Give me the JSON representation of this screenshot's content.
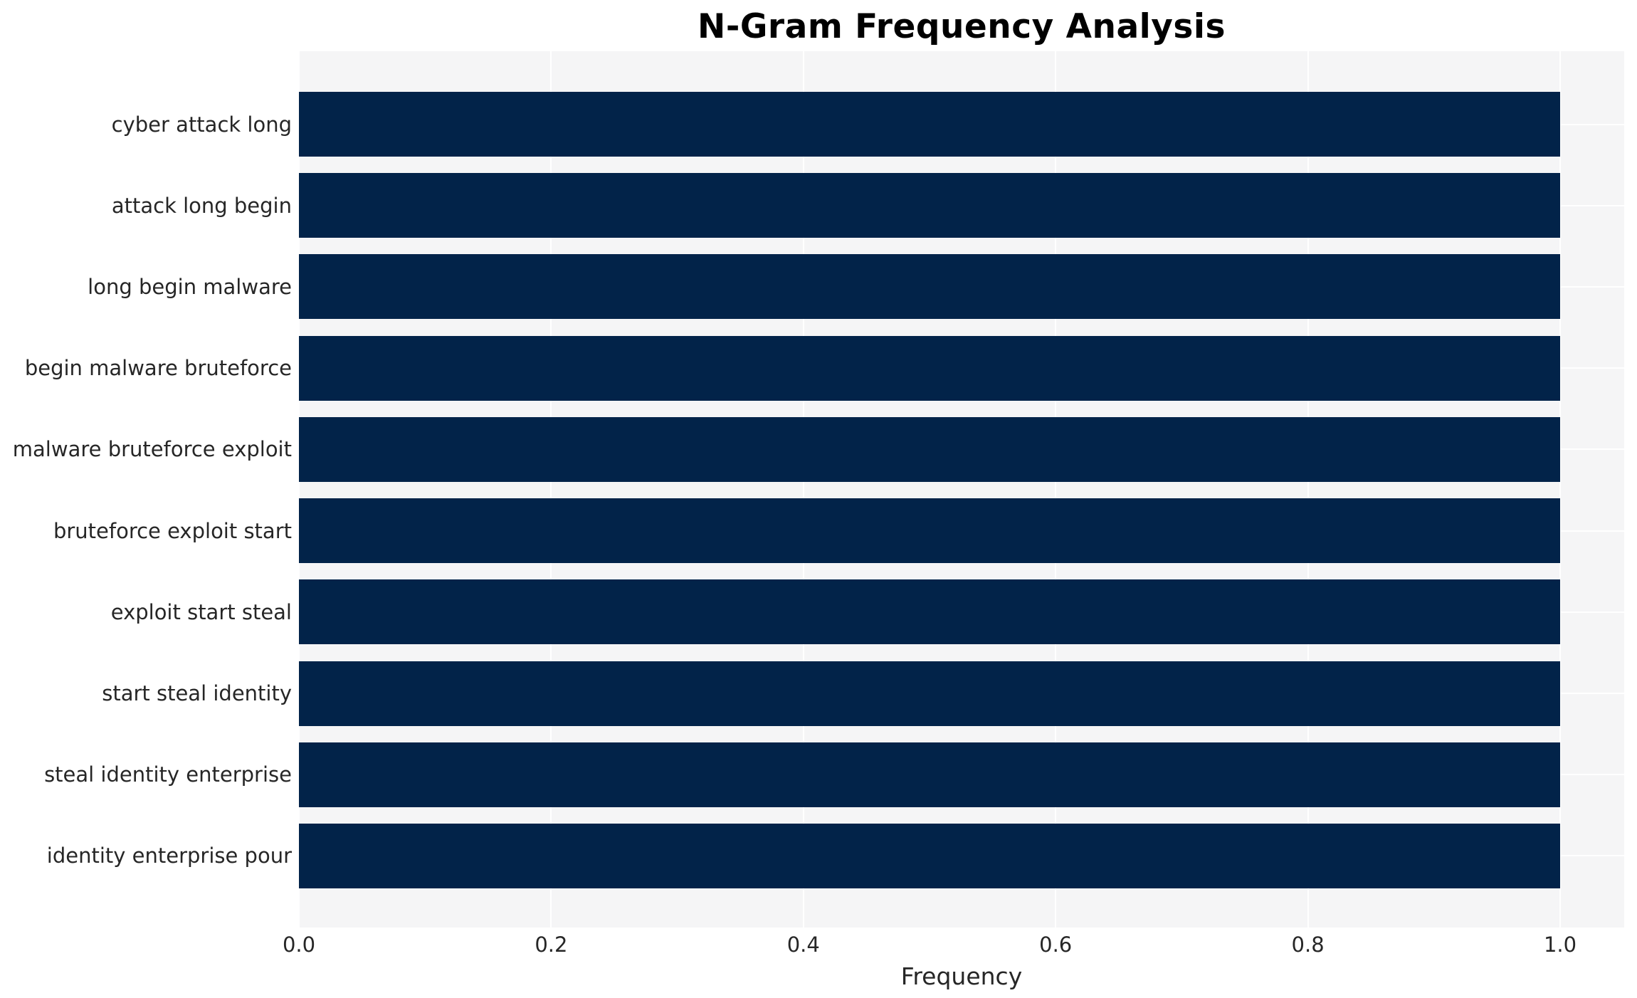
{
  "chart_data": {
    "type": "bar",
    "orientation": "horizontal",
    "title": "N-Gram Frequency Analysis",
    "xlabel": "Frequency",
    "ylabel": "",
    "categories": [
      "cyber attack long",
      "attack long begin",
      "long begin malware",
      "begin malware bruteforce",
      "malware bruteforce exploit",
      "bruteforce exploit start",
      "exploit start steal",
      "start steal identity",
      "steal identity enterprise",
      "identity enterprise pour"
    ],
    "values": [
      1.0,
      1.0,
      1.0,
      1.0,
      1.0,
      1.0,
      1.0,
      1.0,
      1.0,
      1.0
    ],
    "xlim": [
      0,
      1.05
    ],
    "x_ticks": [
      0.0,
      0.2,
      0.4,
      0.6,
      0.8,
      1.0
    ],
    "x_tick_labels": [
      "0.0",
      "0.2",
      "0.4",
      "0.6",
      "0.8",
      "1.0"
    ],
    "grid": true,
    "legend": "none",
    "bar_color": "#022349",
    "plot_bg_color": "#f5f5f6",
    "grid_color": "#ffffff",
    "text_color": "#262626",
    "title_color": "#000000"
  }
}
